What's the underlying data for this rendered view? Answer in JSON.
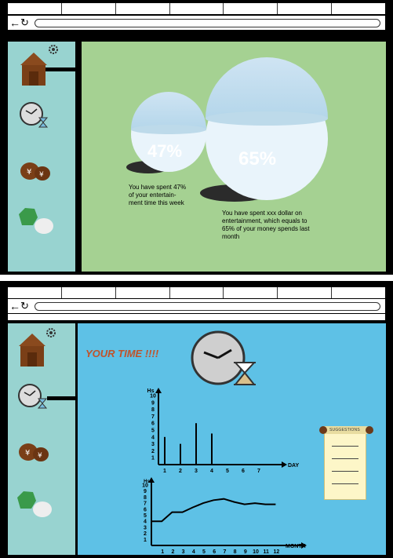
{
  "screen1": {
    "bubbles": [
      {
        "value": "47%",
        "caption": [
          "You have spent 47%",
          "of your entertain-",
          "ment time this week"
        ]
      },
      {
        "value": "65%",
        "caption": [
          "You have spent xxx dollar on",
          "entertainment, which equals to",
          "65% of your money spends last",
          "month"
        ]
      }
    ]
  },
  "screen2": {
    "title": "YOUR TIME !!!!",
    "note_label": "SUGGESTIONS",
    "top_chart": {
      "ylabel": "Hs",
      "xlabel": "DAY",
      "y_ticks": [
        "10",
        "9",
        "8",
        "7",
        "6",
        "5",
        "4",
        "3",
        "2",
        "1"
      ],
      "x_ticks": [
        "1",
        "2",
        "3",
        "4",
        "5",
        "6",
        "7"
      ]
    },
    "bottom_chart": {
      "ylabel": "Hs",
      "xlabel": "MONTH",
      "y_ticks": [
        "10",
        "9",
        "8",
        "7",
        "6",
        "5",
        "4",
        "3",
        "2",
        "1"
      ],
      "x_ticks": [
        "1",
        "2",
        "3",
        "4",
        "5",
        "6",
        "7",
        "8",
        "9",
        "10",
        "11",
        "12"
      ]
    }
  },
  "chart_data": [
    {
      "type": "bar",
      "categories": [
        "1",
        "2",
        "3",
        "4",
        "5",
        "6",
        "7"
      ],
      "values": [
        4,
        3,
        6,
        4.5,
        0,
        0,
        0
      ],
      "xlabel": "DAY",
      "ylabel": "Hs",
      "ylim": [
        0,
        10
      ]
    },
    {
      "type": "line",
      "x": [
        0.5,
        1.5,
        2.5,
        3.5,
        4.5,
        5.5,
        6.5,
        7.5,
        8.5,
        9.5,
        10.5,
        11.5,
        12.5
      ],
      "values": [
        4,
        4,
        5.5,
        5.5,
        6.3,
        7,
        7.5,
        7.7,
        7.2,
        6.8,
        7,
        6.8,
        6.8
      ],
      "xlabel": "MONTH",
      "ylabel": "Hs",
      "ylim": [
        0,
        10
      ]
    }
  ],
  "icons": [
    "home-icon",
    "gear-icon",
    "clock-icon",
    "hourglass-icon",
    "money-bags-icon",
    "social-icon"
  ]
}
